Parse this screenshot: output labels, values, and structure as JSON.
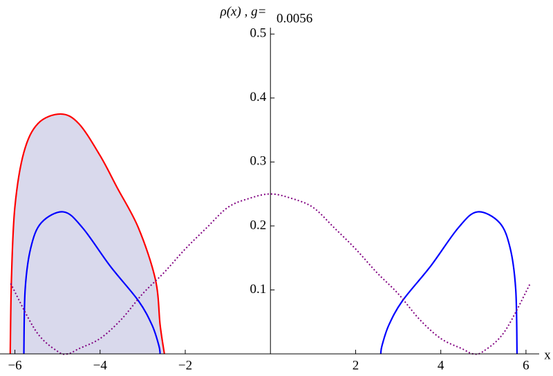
{
  "chart_data": {
    "type": "line",
    "y_label": "ρ(x) , g=",
    "g_label": "0.0056",
    "x_label": "x",
    "xlim": [
      -6.35,
      6.31
    ],
    "ylim": [
      0,
      0.51
    ],
    "xticks": [
      {
        "value": -6,
        "label": "−6"
      },
      {
        "value": -4,
        "label": "−4"
      },
      {
        "value": -2,
        "label": "−2"
      },
      2,
      4,
      6
    ],
    "yticks": [
      0.1,
      0.2,
      0.3,
      0.4,
      0.5
    ],
    "series": [
      {
        "color": "#ff0000",
        "fill": "#d9d9ec",
        "dash": false,
        "x": [
          -6.11,
          -6.08,
          -6.0,
          -5.79,
          -5.46,
          -4.93,
          -4.5,
          -4.0,
          -3.6,
          -3.1,
          -2.7,
          -2.59,
          -2.49
        ],
        "values": [
          0,
          0.12,
          0.23,
          0.315,
          0.36,
          0.375,
          0.36,
          0.31,
          0.26,
          0.197,
          0.116,
          0.045,
          0
        ]
      },
      {
        "color": "#0000ff",
        "dash": false,
        "x": [
          -5.79,
          -5.76,
          -5.63,
          -5.38,
          -4.86,
          -4.41,
          -3.76,
          -3.1,
          -2.78,
          -2.62,
          -2.59
        ],
        "values": [
          0,
          0.1,
          0.165,
          0.205,
          0.222,
          0.197,
          0.137,
          0.083,
          0.045,
          0.013,
          0
        ]
      },
      {
        "color": "#0000ff",
        "dash": false,
        "x": [
          2.59,
          2.62,
          2.78,
          3.1,
          3.76,
          4.41,
          4.86,
          5.38,
          5.63,
          5.76,
          5.79
        ],
        "values": [
          0,
          0.013,
          0.045,
          0.083,
          0.137,
          0.197,
          0.222,
          0.205,
          0.165,
          0.1,
          0
        ]
      },
      {
        "color": "#800080",
        "dash": true,
        "x": [
          -6.1,
          -5.5,
          -5,
          -4.76,
          -4.5,
          -4,
          -3.5,
          -3,
          -2.5,
          -2,
          -1.5,
          -1,
          -0.5,
          0,
          0.5,
          1,
          1.5,
          2,
          2.5,
          3,
          3.5,
          4,
          4.5,
          4.76,
          5,
          5.5,
          6.1
        ],
        "values": [
          0.11,
          0.035,
          0.004,
          0,
          0.008,
          0.024,
          0.054,
          0.094,
          0.127,
          0.164,
          0.197,
          0.229,
          0.243,
          0.25,
          0.243,
          0.229,
          0.197,
          0.164,
          0.127,
          0.094,
          0.054,
          0.024,
          0.008,
          0,
          0.004,
          0.035,
          0.11
        ]
      }
    ]
  }
}
